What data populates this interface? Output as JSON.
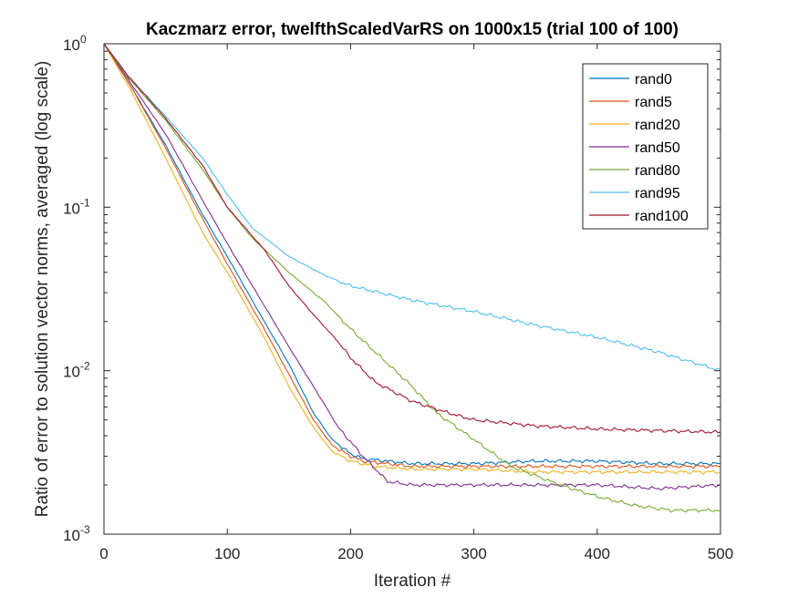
{
  "chart_data": {
    "type": "line",
    "title": "Kaczmarz error, twelfthScaledVarRS on 1000x15 (trial 100 of 100)",
    "xlabel": "Iteration #",
    "ylabel": "Ratio of error to solution vector norms, averaged (log scale)",
    "xlim": [
      0,
      500
    ],
    "ylim": [
      0.001,
      1
    ],
    "yscale": "log",
    "grid": false,
    "legend_position": "top-right",
    "x_ticks": [
      "0",
      "100",
      "200",
      "300",
      "400",
      "500"
    ],
    "y_ticks": [
      {
        "base": "10",
        "exp": "-3"
      },
      {
        "base": "10",
        "exp": "-2"
      },
      {
        "base": "10",
        "exp": "-1"
      },
      {
        "base": "10",
        "exp": "0"
      }
    ],
    "series": [
      {
        "name": "rand0",
        "color": "#0072BD",
        "points": [
          [
            0,
            1
          ],
          [
            20,
            0.58
          ],
          [
            50,
            0.24
          ],
          [
            80,
            0.09
          ],
          [
            100,
            0.05
          ],
          [
            130,
            0.02
          ],
          [
            150,
            0.011
          ],
          [
            170,
            0.0055
          ],
          [
            185,
            0.0038
          ],
          [
            200,
            0.0031
          ],
          [
            210,
            0.0029
          ],
          [
            250,
            0.0027
          ],
          [
            300,
            0.0027
          ],
          [
            350,
            0.0028
          ],
          [
            400,
            0.0028
          ],
          [
            450,
            0.0027
          ],
          [
            500,
            0.0027
          ]
        ]
      },
      {
        "name": "rand5",
        "color": "#D95319",
        "points": [
          [
            0,
            1
          ],
          [
            20,
            0.58
          ],
          [
            50,
            0.23
          ],
          [
            80,
            0.085
          ],
          [
            100,
            0.045
          ],
          [
            130,
            0.018
          ],
          [
            150,
            0.0095
          ],
          [
            170,
            0.005
          ],
          [
            185,
            0.0035
          ],
          [
            200,
            0.003
          ],
          [
            210,
            0.0028
          ],
          [
            250,
            0.0026
          ],
          [
            300,
            0.0026
          ],
          [
            350,
            0.0026
          ],
          [
            400,
            0.0026
          ],
          [
            450,
            0.0026
          ],
          [
            500,
            0.0026
          ]
        ]
      },
      {
        "name": "rand20",
        "color": "#EDB120",
        "points": [
          [
            0,
            1
          ],
          [
            20,
            0.55
          ],
          [
            50,
            0.2
          ],
          [
            80,
            0.07
          ],
          [
            100,
            0.04
          ],
          [
            130,
            0.016
          ],
          [
            150,
            0.008
          ],
          [
            170,
            0.0045
          ],
          [
            185,
            0.0032
          ],
          [
            200,
            0.0028
          ],
          [
            220,
            0.0026
          ],
          [
            250,
            0.0025
          ],
          [
            300,
            0.0025
          ],
          [
            350,
            0.0024
          ],
          [
            400,
            0.0024
          ],
          [
            450,
            0.0024
          ],
          [
            500,
            0.0024
          ]
        ]
      },
      {
        "name": "rand50",
        "color": "#7E2F8E",
        "points": [
          [
            0,
            1
          ],
          [
            20,
            0.6
          ],
          [
            50,
            0.28
          ],
          [
            80,
            0.11
          ],
          [
            100,
            0.06
          ],
          [
            130,
            0.025
          ],
          [
            150,
            0.014
          ],
          [
            170,
            0.008
          ],
          [
            190,
            0.0045
          ],
          [
            210,
            0.003
          ],
          [
            230,
            0.0021
          ],
          [
            250,
            0.002
          ],
          [
            300,
            0.002
          ],
          [
            350,
            0.002
          ],
          [
            400,
            0.002
          ],
          [
            450,
            0.0019
          ],
          [
            500,
            0.002
          ]
        ]
      },
      {
        "name": "rand80",
        "color": "#77AC30",
        "points": [
          [
            0,
            1
          ],
          [
            20,
            0.62
          ],
          [
            50,
            0.34
          ],
          [
            80,
            0.17
          ],
          [
            100,
            0.1
          ],
          [
            120,
            0.065
          ],
          [
            150,
            0.04
          ],
          [
            180,
            0.026
          ],
          [
            200,
            0.018
          ],
          [
            220,
            0.013
          ],
          [
            250,
            0.008
          ],
          [
            270,
            0.0055
          ],
          [
            300,
            0.0038
          ],
          [
            330,
            0.0026
          ],
          [
            370,
            0.002
          ],
          [
            400,
            0.0017
          ],
          [
            430,
            0.0015
          ],
          [
            460,
            0.0014
          ],
          [
            500,
            0.0014
          ]
        ]
      },
      {
        "name": "rand95",
        "color": "#4DBEEE",
        "points": [
          [
            0,
            1
          ],
          [
            20,
            0.63
          ],
          [
            50,
            0.36
          ],
          [
            80,
            0.2
          ],
          [
            100,
            0.12
          ],
          [
            120,
            0.075
          ],
          [
            150,
            0.05
          ],
          [
            180,
            0.038
          ],
          [
            200,
            0.033
          ],
          [
            250,
            0.027
          ],
          [
            300,
            0.023
          ],
          [
            350,
            0.019
          ],
          [
            400,
            0.016
          ],
          [
            450,
            0.013
          ],
          [
            500,
            0.01
          ]
        ]
      },
      {
        "name": "rand100",
        "color": "#A2142F",
        "points": [
          [
            0,
            1
          ],
          [
            20,
            0.63
          ],
          [
            50,
            0.35
          ],
          [
            80,
            0.18
          ],
          [
            100,
            0.1
          ],
          [
            130,
            0.055
          ],
          [
            150,
            0.033
          ],
          [
            170,
            0.022
          ],
          [
            190,
            0.015
          ],
          [
            200,
            0.012
          ],
          [
            220,
            0.0085
          ],
          [
            250,
            0.0065
          ],
          [
            280,
            0.0055
          ],
          [
            300,
            0.005
          ],
          [
            350,
            0.0046
          ],
          [
            400,
            0.0044
          ],
          [
            450,
            0.0043
          ],
          [
            500,
            0.0042
          ]
        ]
      }
    ]
  }
}
